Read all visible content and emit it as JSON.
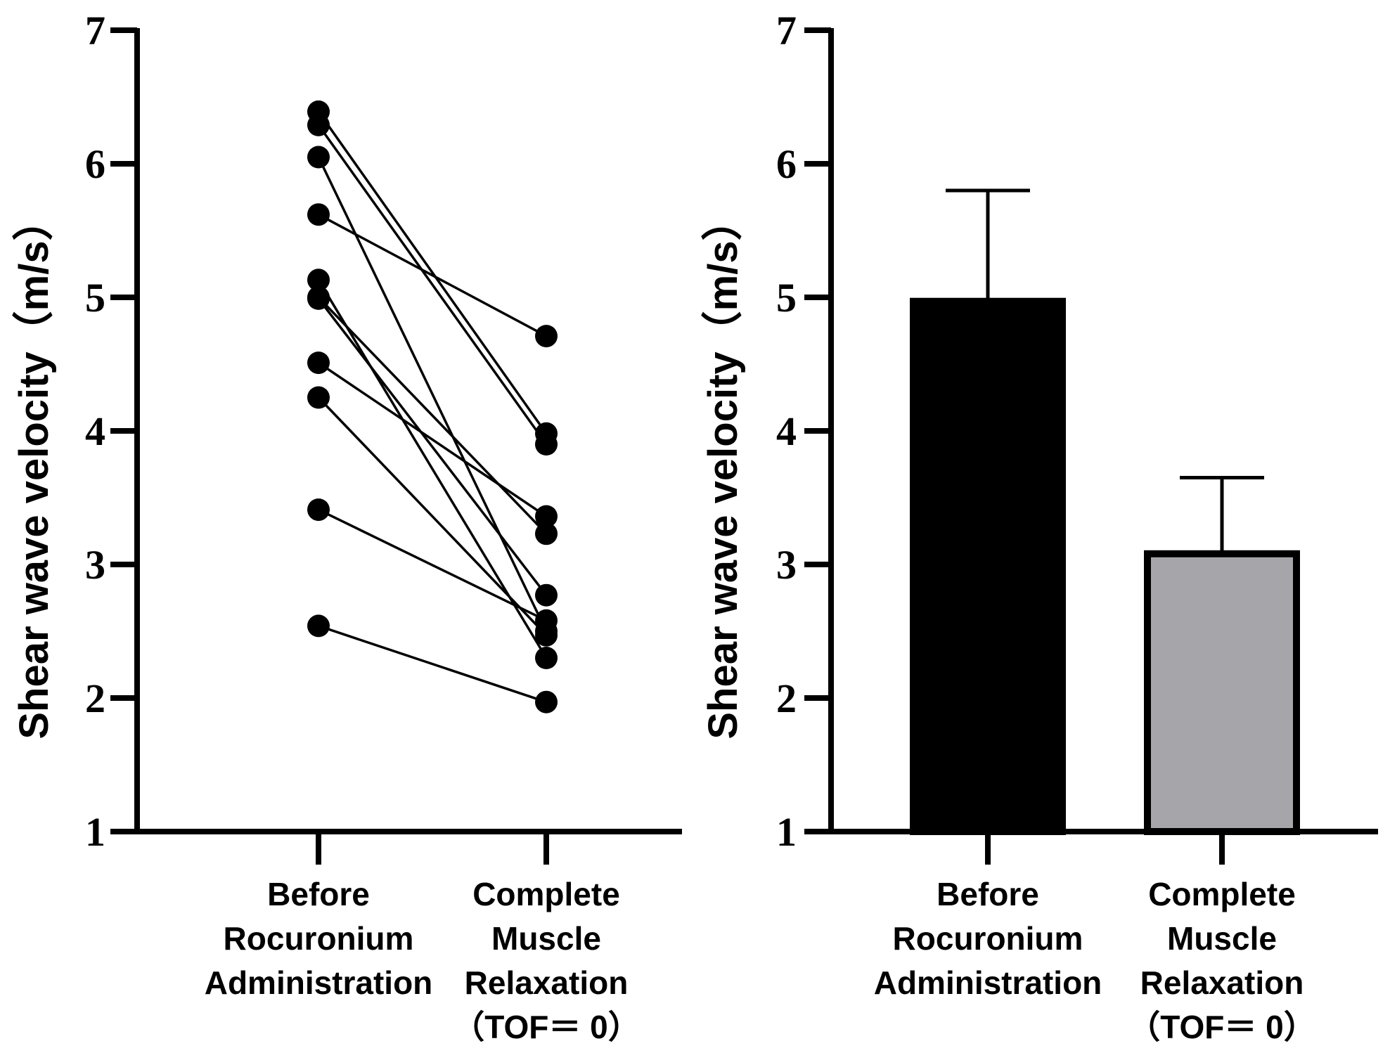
{
  "chart_data": [
    {
      "type": "line",
      "subtype": "paired-dots",
      "ylabel": "Shear wave velocity（m/s）",
      "ylim": [
        1,
        7
      ],
      "yticks": [
        "1",
        "2",
        "3",
        "4",
        "5",
        "6",
        "7"
      ],
      "categories": [
        [
          "Before",
          "Rocuronium",
          "Administration"
        ],
        [
          "Complete",
          "Muscle",
          "Relaxation",
          "（TOF＝ 0）"
        ]
      ],
      "pairs": [
        [
          6.39,
          3.98
        ],
        [
          6.29,
          3.9
        ],
        [
          6.05,
          2.5
        ],
        [
          5.62,
          4.71
        ],
        [
          5.13,
          2.3
        ],
        [
          4.99,
          2.77
        ],
        [
          4.51,
          3.36
        ],
        [
          4.25,
          2.47
        ],
        [
          3.41,
          2.58
        ],
        [
          2.54,
          1.97
        ],
        [
          5.0,
          3.23
        ]
      ],
      "colors": {
        "marker": "#000000",
        "line": "#000000"
      }
    },
    {
      "type": "bar",
      "ylabel": "Shear wave velocity（m/s）",
      "ylim": [
        1,
        7
      ],
      "yticks": [
        "1",
        "2",
        "3",
        "4",
        "5",
        "6",
        "7"
      ],
      "categories": [
        [
          "Before",
          "Rocuronium",
          "Administration"
        ],
        [
          "Complete",
          "Muscle",
          "Relaxation",
          "（TOF＝ 0）"
        ]
      ],
      "values": [
        4.97,
        3.08
      ],
      "error_upper": [
        5.8,
        3.65
      ],
      "colors": {
        "bars": [
          "#000000",
          "#a6a6aa"
        ],
        "outline": "#000000"
      }
    }
  ]
}
